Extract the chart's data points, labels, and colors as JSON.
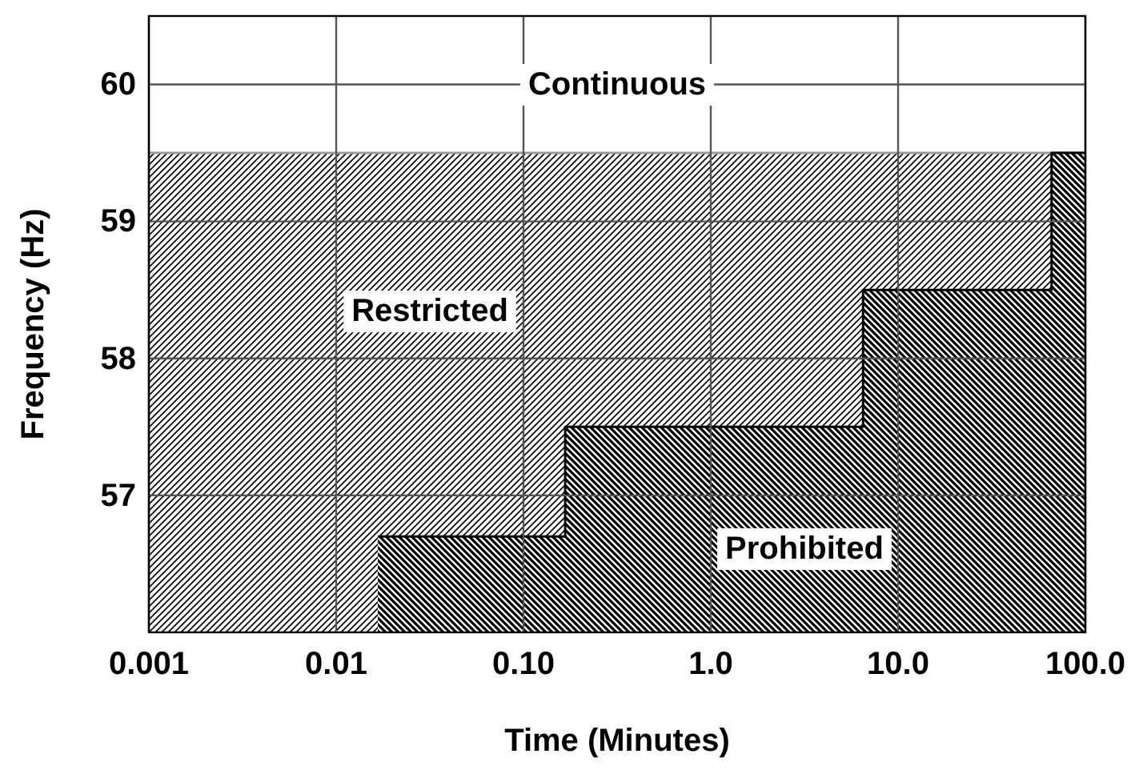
{
  "chart_data": {
    "type": "area",
    "xlabel": "Time (Minutes)",
    "ylabel": "Frequency (Hz)",
    "log": "x",
    "xlim": [
      0.001,
      100
    ],
    "xticks": [
      {
        "value": 0.001,
        "label": "0.001"
      },
      {
        "value": 0.01,
        "label": "0.01"
      },
      {
        "value": 0.1,
        "label": "0.10"
      },
      {
        "value": 1,
        "label": "1.0"
      },
      {
        "value": 10,
        "label": "10.0"
      },
      {
        "value": 100,
        "label": "100.0"
      }
    ],
    "ylim": [
      56,
      60.5
    ],
    "yticks": [
      57,
      58,
      59,
      60
    ],
    "grid": true,
    "annotations": [
      "Continuous"
    ],
    "series": [
      {
        "name": "Restricted",
        "color": "#999999",
        "x": [
          0.001,
          100
        ],
        "values": [
          59.5,
          59.5
        ]
      },
      {
        "name": "Prohibited",
        "color": "#000000",
        "x": [
          0.0167,
          0.167,
          0.167,
          6.5,
          6.5,
          66,
          66,
          100
        ],
        "values": [
          56.7,
          56.7,
          57.5,
          57.5,
          58.5,
          58.5,
          59.5,
          59.5
        ]
      }
    ]
  }
}
